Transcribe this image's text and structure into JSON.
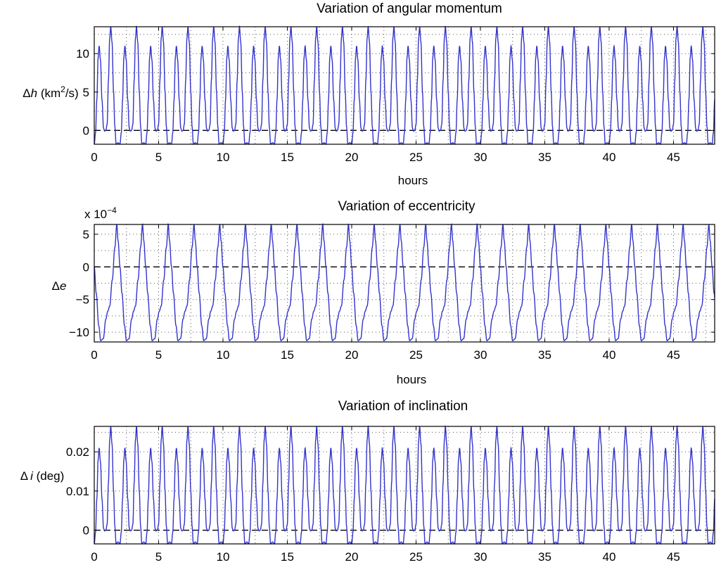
{
  "chart_data": [
    {
      "type": "line",
      "title": "Variation of angular momentum",
      "xlabel": "hours",
      "ylabel": {
        "pre": "Δ",
        "var": "h",
        "unit": " (km",
        "sup": "2",
        "post": "/s)"
      },
      "exponent": null,
      "xlim": [
        0,
        48.2
      ],
      "ylim": [
        -1.8,
        13.5
      ],
      "xticks": [
        0,
        5,
        10,
        15,
        20,
        25,
        30,
        35,
        40,
        45
      ],
      "xtick_labels": [
        "0",
        "5",
        "10",
        "15",
        "20",
        "25",
        "30",
        "35",
        "40",
        "45"
      ],
      "yticks": [
        0,
        5,
        10
      ],
      "ytick_labels": [
        "0",
        "5",
        "10"
      ],
      "grid": true,
      "zero_line": true,
      "series": [
        {
          "color": "#3333cc",
          "period_hours": 2.0,
          "cycle_shape": [
            [
              0.0,
              -1.8
            ],
            [
              0.1,
              -0.3
            ],
            [
              0.2,
              4.0
            ],
            [
              0.3,
              9.5
            ],
            [
              0.38,
              11.0
            ],
            [
              0.48,
              9.2
            ],
            [
              0.6,
              4.0
            ],
            [
              0.72,
              0.3
            ],
            [
              0.8,
              -0.1
            ],
            [
              0.9,
              0.0
            ],
            [
              1.0,
              0.8
            ],
            [
              1.1,
              6.5
            ],
            [
              1.2,
              12.0
            ],
            [
              1.28,
              13.5
            ],
            [
              1.38,
              11.5
            ],
            [
              1.5,
              5.0
            ],
            [
              1.6,
              0.5
            ],
            [
              1.7,
              -1.8
            ],
            [
              1.85,
              -1.6
            ],
            [
              2.0,
              -1.8
            ]
          ],
          "max": 13.5,
          "secondary_peak": 11.0,
          "min": -1.8
        }
      ]
    },
    {
      "type": "line",
      "title": "Variation of eccentricity",
      "xlabel": "hours",
      "ylabel": {
        "pre": "Δ",
        "var": "e",
        "unit": "",
        "sup": "",
        "post": ""
      },
      "exponent": {
        "base": "x 10",
        "power": "−4"
      },
      "xlim": [
        0,
        48.2
      ],
      "ylim": [
        -11.5,
        6.5
      ],
      "xticks": [
        0,
        5,
        10,
        15,
        20,
        25,
        30,
        35,
        40,
        45
      ],
      "xtick_labels": [
        "0",
        "5",
        "10",
        "15",
        "20",
        "25",
        "30",
        "35",
        "40",
        "45"
      ],
      "yticks": [
        -10,
        -5,
        0,
        5
      ],
      "ytick_labels": [
        "−10",
        "−5",
        "0",
        "5"
      ],
      "grid": true,
      "zero_line": true,
      "series": [
        {
          "color": "#3333cc",
          "period_hours": 2.0,
          "cycle_shape": [
            [
              0.0,
              0.0
            ],
            [
              0.15,
              -4.0
            ],
            [
              0.35,
              -9.0
            ],
            [
              0.5,
              -11.3
            ],
            [
              0.7,
              -11.0
            ],
            [
              0.9,
              -8.0
            ],
            [
              1.05,
              -6.8
            ],
            [
              1.2,
              -6.0
            ],
            [
              1.4,
              -2.0
            ],
            [
              1.6,
              3.0
            ],
            [
              1.75,
              6.5
            ],
            [
              1.85,
              4.0
            ],
            [
              2.0,
              0.0
            ]
          ],
          "max": 6.5,
          "min": -11.3
        }
      ]
    },
    {
      "type": "line",
      "title": "Variation of inclination",
      "xlabel": "",
      "ylabel": {
        "pre": "Δ",
        "var": "i",
        "unit": " (deg)",
        "sup": "",
        "post": ""
      },
      "exponent": null,
      "xlim": [
        0,
        48.2
      ],
      "ylim": [
        -0.0035,
        0.0265
      ],
      "xticks": [
        0,
        5,
        10,
        15,
        20,
        25,
        30,
        35,
        40,
        45
      ],
      "xtick_labels": [
        "0",
        "5",
        "10",
        "15",
        "20",
        "25",
        "30",
        "35",
        "40",
        "45"
      ],
      "yticks": [
        0,
        0.01,
        0.02
      ],
      "ytick_labels": [
        "0",
        "0.01",
        "0.02"
      ],
      "grid": true,
      "zero_line": true,
      "series": [
        {
          "color": "#3333cc",
          "period_hours": 2.0,
          "cycle_shape": [
            [
              0.0,
              -0.0035
            ],
            [
              0.1,
              -0.0005
            ],
            [
              0.2,
              0.008
            ],
            [
              0.3,
              0.018
            ],
            [
              0.38,
              0.021
            ],
            [
              0.48,
              0.0175
            ],
            [
              0.6,
              0.008
            ],
            [
              0.72,
              0.0005
            ],
            [
              0.8,
              -0.0002
            ],
            [
              0.9,
              0.0
            ],
            [
              1.0,
              0.0015
            ],
            [
              1.1,
              0.012
            ],
            [
              1.2,
              0.023
            ],
            [
              1.28,
              0.0265
            ],
            [
              1.38,
              0.022
            ],
            [
              1.5,
              0.01
            ],
            [
              1.6,
              0.001
            ],
            [
              1.7,
              -0.0035
            ],
            [
              1.85,
              -0.003
            ],
            [
              2.0,
              -0.0035
            ]
          ],
          "max": 0.0265,
          "secondary_peak": 0.021,
          "min": -0.0035
        }
      ]
    }
  ]
}
